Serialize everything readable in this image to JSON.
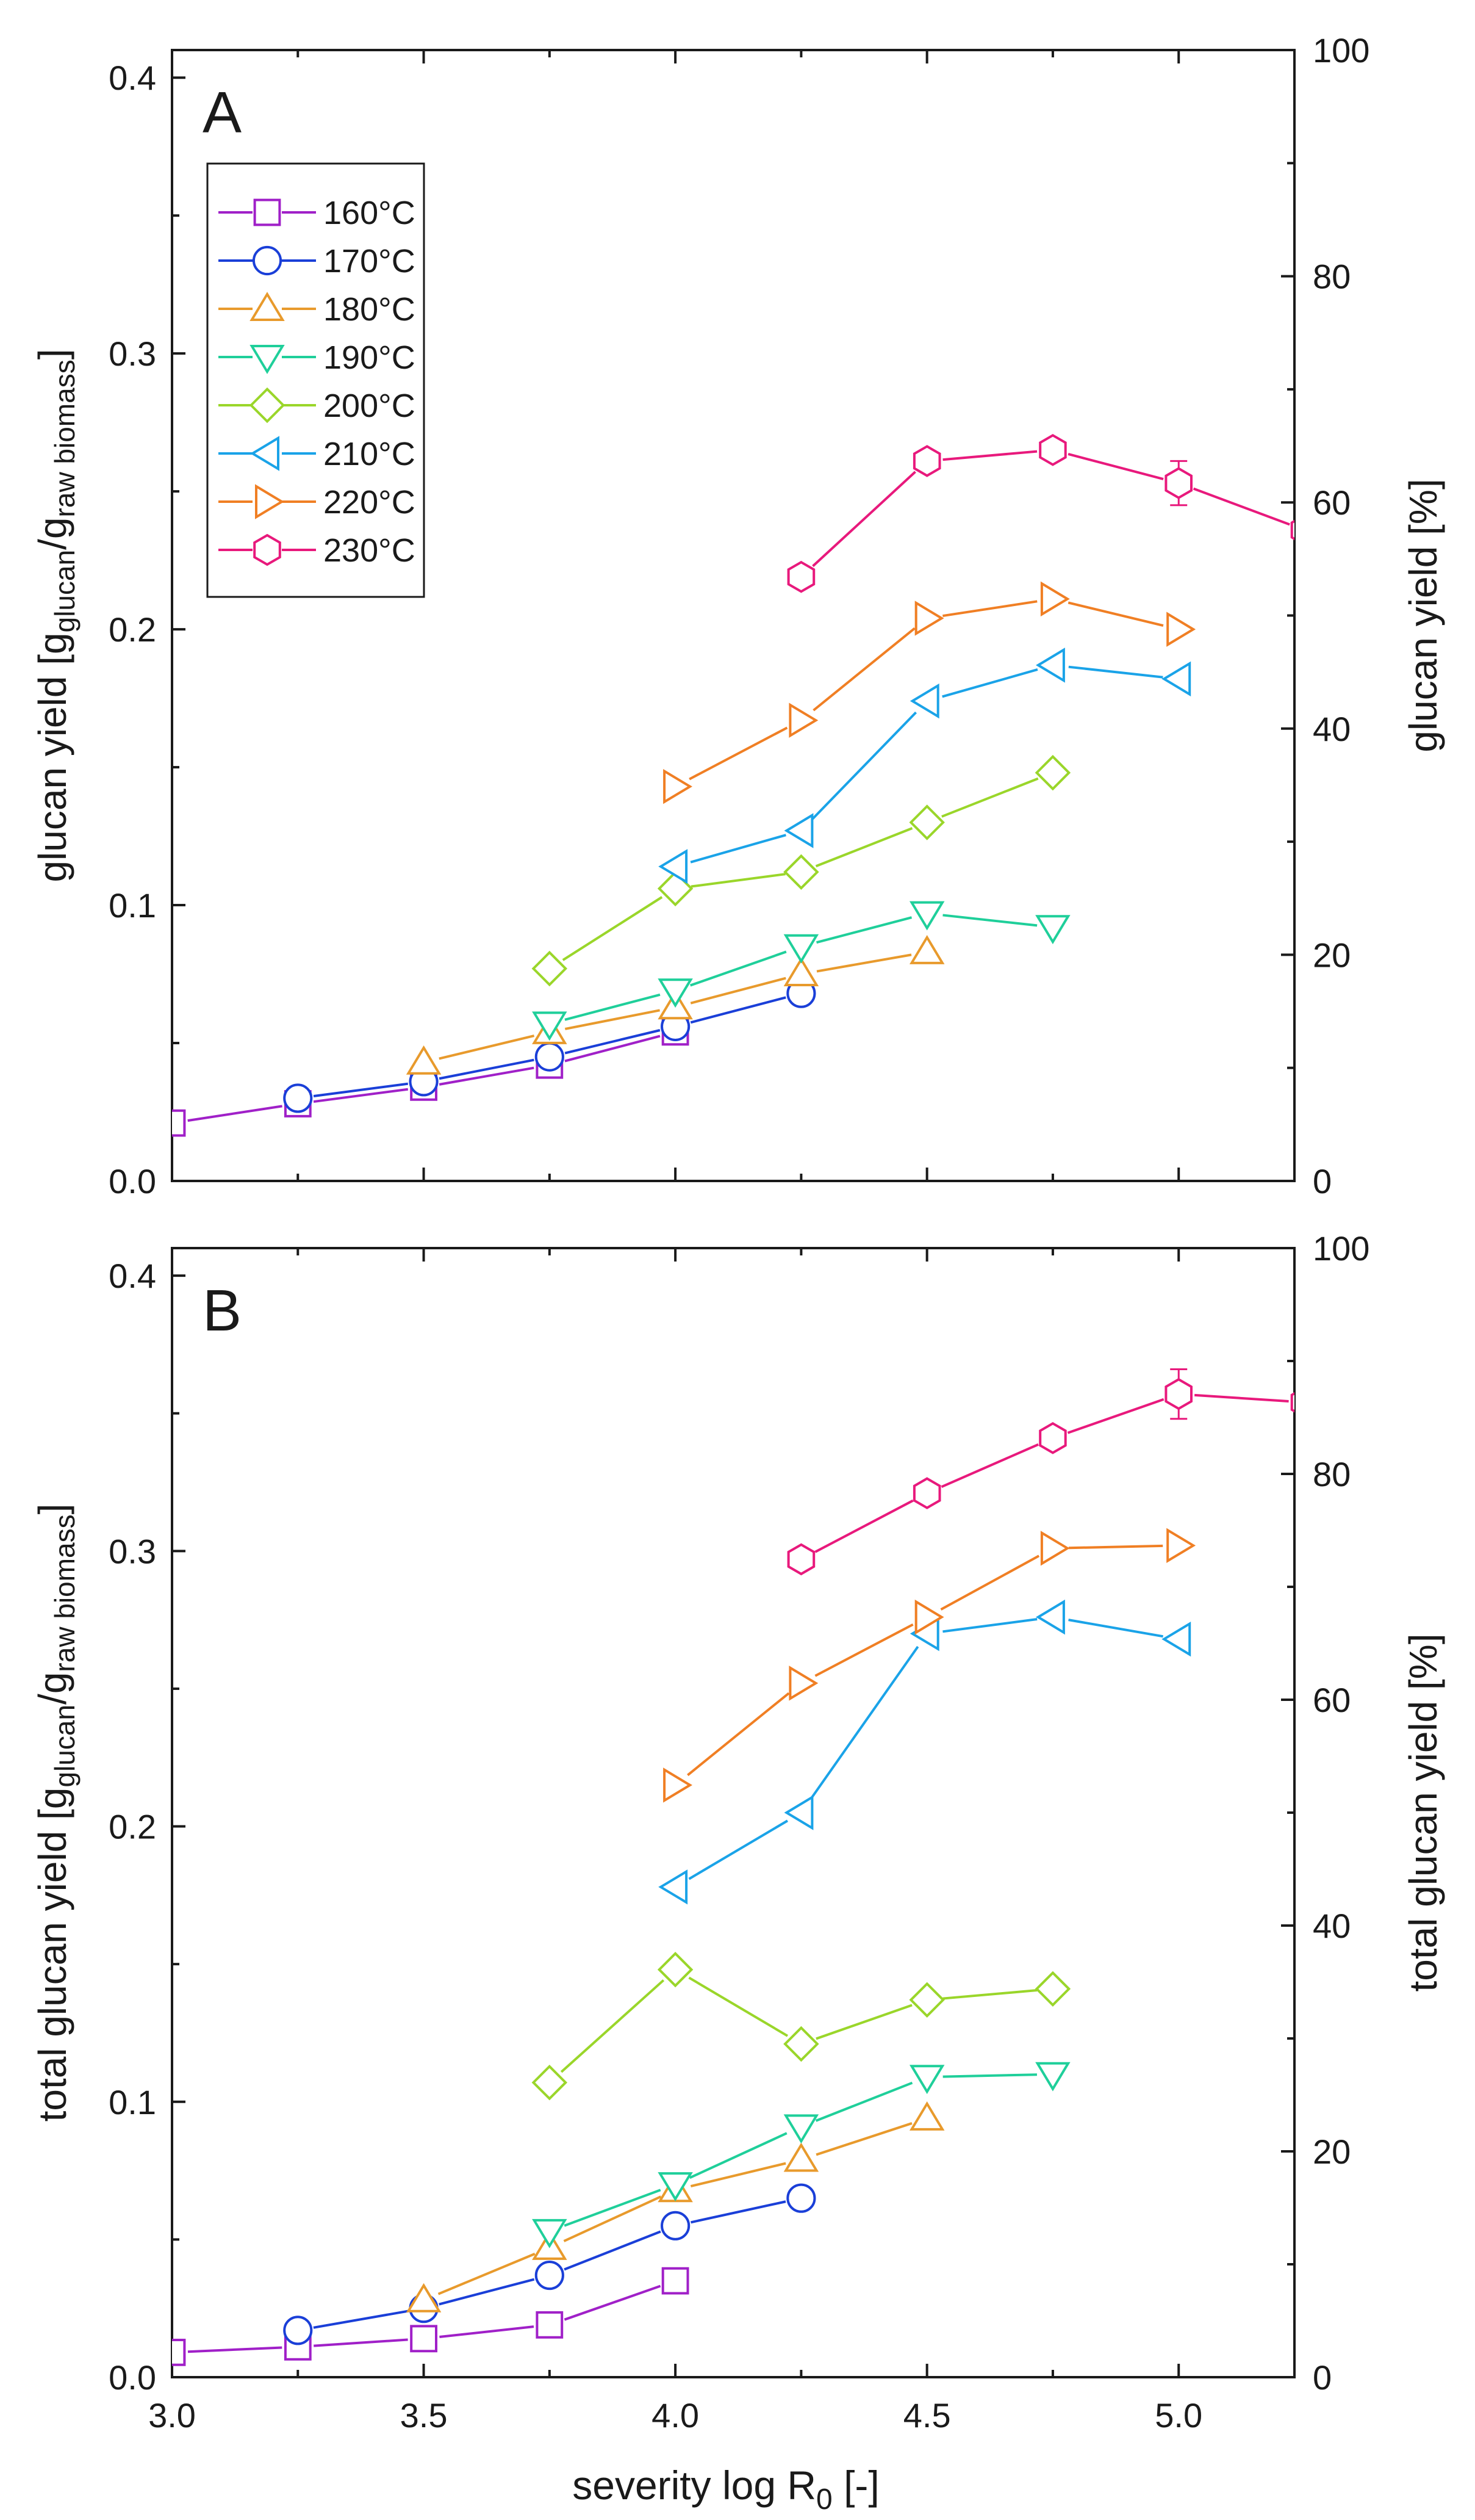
{
  "figure": {
    "xlabel_main": "severity log R",
    "xlabel_sub": "0",
    "xlabel_tail": " [-]"
  },
  "series_styles": [
    {
      "name": "160°C",
      "color": "#a020c8",
      "marker": "square"
    },
    {
      "name": "170°C",
      "color": "#1a3fd8",
      "marker": "circle"
    },
    {
      "name": "180°C",
      "color": "#e89a2c",
      "marker": "triangle-up"
    },
    {
      "name": "190°C",
      "color": "#1fcf9a",
      "marker": "triangle-down"
    },
    {
      "name": "200°C",
      "color": "#9ad62a",
      "marker": "diamond"
    },
    {
      "name": "210°C",
      "color": "#1aa3e8",
      "marker": "triangle-left"
    },
    {
      "name": "220°C",
      "color": "#f07f24",
      "marker": "triangle-right"
    },
    {
      "name": "230°C",
      "color": "#e8197c",
      "marker": "hexagon"
    }
  ],
  "chart_data": [
    {
      "type": "line",
      "panel_label": "A",
      "ylabel_main": "glucan yield [g",
      "ylabel_sub1": "glucan",
      "ylabel_mid": "/g",
      "ylabel_sub2": "raw biomass",
      "ylabel_tail": "]",
      "ylabel_right": "glucan yield [%]",
      "xlim": [
        3.0,
        5.23
      ],
      "ylim": [
        0.0,
        0.41
      ],
      "ylim_right": [
        0,
        100
      ],
      "xticks": [
        "3.0",
        "3.5",
        "4.0",
        "4.5",
        "5.0"
      ],
      "yticks": [
        "0.0",
        "0.1",
        "0.2",
        "0.3",
        "0.4"
      ],
      "yticks_right": [
        "0",
        "20",
        "40",
        "60",
        "80",
        "100"
      ],
      "legend": "top-left",
      "series": [
        {
          "name": "160°C",
          "x": [
            3.0,
            3.25,
            3.5,
            3.75,
            4.0
          ],
          "values": [
            0.021,
            0.028,
            0.034,
            0.042,
            0.054
          ]
        },
        {
          "name": "170°C",
          "x": [
            3.25,
            3.5,
            3.75,
            4.0,
            4.25
          ],
          "values": [
            0.03,
            0.036,
            0.045,
            0.056,
            0.068
          ]
        },
        {
          "name": "180°C",
          "x": [
            3.5,
            3.75,
            4.0,
            4.25,
            4.5
          ],
          "values": [
            0.043,
            0.054,
            0.063,
            0.075,
            0.083
          ]
        },
        {
          "name": "190°C",
          "x": [
            3.75,
            4.0,
            4.25,
            4.5,
            4.75
          ],
          "values": [
            0.057,
            0.069,
            0.085,
            0.097,
            0.092
          ]
        },
        {
          "name": "200°C",
          "x": [
            3.75,
            4.0,
            4.25,
            4.5,
            4.75
          ],
          "values": [
            0.077,
            0.106,
            0.112,
            0.13,
            0.148
          ]
        },
        {
          "name": "210°C",
          "x": [
            4.0,
            4.25,
            4.5,
            4.75,
            5.0
          ],
          "values": [
            0.114,
            0.127,
            0.174,
            0.187,
            0.182
          ]
        },
        {
          "name": "220°C",
          "x": [
            4.0,
            4.25,
            4.5,
            4.75,
            5.0
          ],
          "values": [
            0.143,
            0.167,
            0.204,
            0.211,
            0.2
          ]
        },
        {
          "name": "230°C",
          "x": [
            4.25,
            4.5,
            4.75,
            5.0,
            5.25
          ],
          "values": [
            0.219,
            0.261,
            0.265,
            0.253,
            0.236
          ],
          "errors": [
            0,
            0,
            0,
            0.008,
            0
          ]
        }
      ]
    },
    {
      "type": "line",
      "panel_label": "B",
      "ylabel_main": "total glucan yield [g",
      "ylabel_sub1": "glucan",
      "ylabel_mid": "/g",
      "ylabel_sub2": "raw biomass",
      "ylabel_tail": "]",
      "ylabel_right": "total glucan yield [%]",
      "xlim": [
        3.0,
        5.23
      ],
      "ylim": [
        0.0,
        0.41
      ],
      "ylim_right": [
        0,
        100
      ],
      "xticks": [
        "3.0",
        "3.5",
        "4.0",
        "4.5",
        "5.0"
      ],
      "yticks": [
        "0.0",
        "0.1",
        "0.2",
        "0.3",
        "0.4"
      ],
      "yticks_right": [
        "0",
        "20",
        "40",
        "60",
        "80",
        "100"
      ],
      "legend": "none",
      "series": [
        {
          "name": "160°C",
          "x": [
            3.0,
            3.25,
            3.5,
            3.75,
            4.0
          ],
          "values": [
            0.009,
            0.011,
            0.014,
            0.019,
            0.035
          ]
        },
        {
          "name": "170°C",
          "x": [
            3.25,
            3.5,
            3.75,
            4.0,
            4.25
          ],
          "values": [
            0.017,
            0.025,
            0.037,
            0.055,
            0.065
          ]
        },
        {
          "name": "180°C",
          "x": [
            3.5,
            3.75,
            4.0,
            4.25,
            4.5
          ],
          "values": [
            0.028,
            0.047,
            0.068,
            0.079,
            0.094
          ]
        },
        {
          "name": "190°C",
          "x": [
            3.75,
            4.0,
            4.25,
            4.5,
            4.75
          ],
          "values": [
            0.053,
            0.07,
            0.091,
            0.109,
            0.11
          ]
        },
        {
          "name": "200°C",
          "x": [
            3.75,
            4.0,
            4.25,
            4.5,
            4.75
          ],
          "values": [
            0.107,
            0.148,
            0.121,
            0.137,
            0.141
          ]
        },
        {
          "name": "210°C",
          "x": [
            4.0,
            4.25,
            4.5,
            4.75,
            5.0
          ],
          "values": [
            0.178,
            0.205,
            0.27,
            0.276,
            0.268
          ]
        },
        {
          "name": "220°C",
          "x": [
            4.0,
            4.25,
            4.5,
            4.75,
            5.0
          ],
          "values": [
            0.215,
            0.252,
            0.276,
            0.301,
            0.302
          ]
        },
        {
          "name": "230°C",
          "x": [
            4.25,
            4.5,
            4.75,
            5.0,
            5.25
          ],
          "values": [
            0.297,
            0.321,
            0.341,
            0.357,
            0.354
          ],
          "errors": [
            0,
            0,
            0,
            0.009,
            0
          ]
        }
      ]
    }
  ]
}
